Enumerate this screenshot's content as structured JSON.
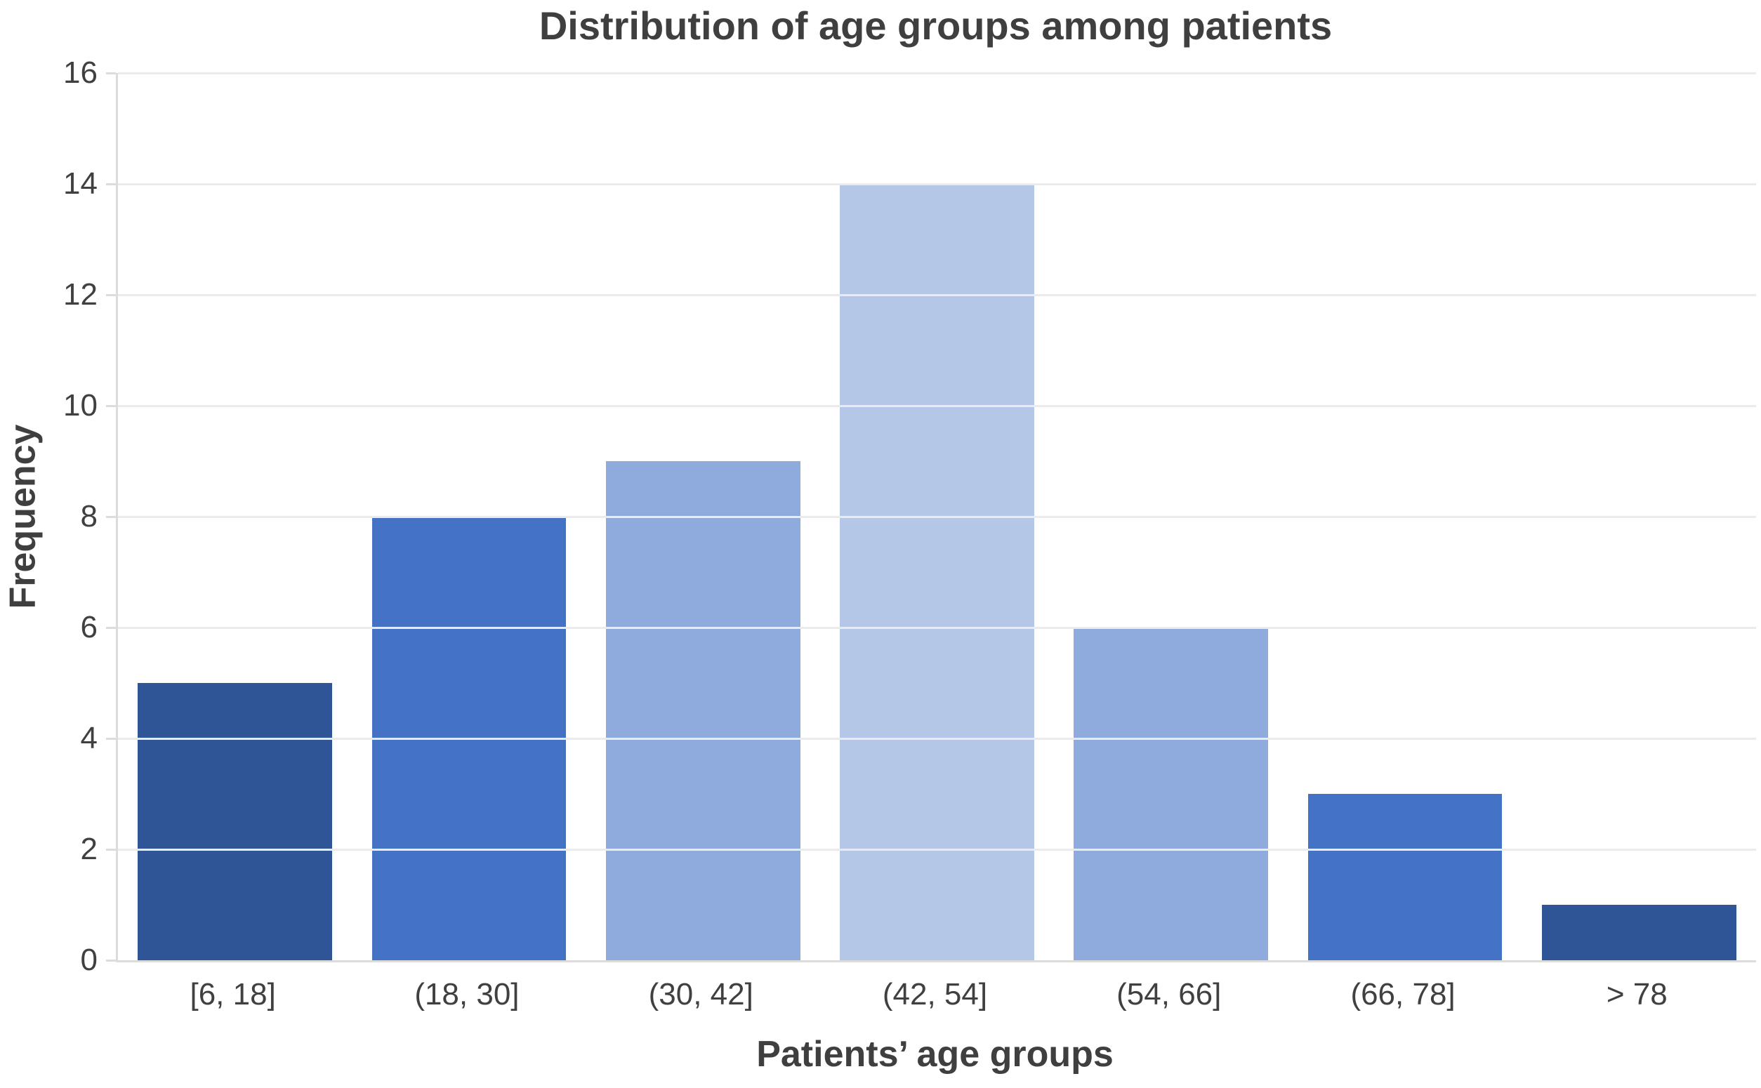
{
  "chart_data": {
    "type": "bar",
    "title": "Distribution of age groups among patients",
    "xlabel": "Patients’ age groups",
    "ylabel": "Frequency",
    "categories": [
      "[6, 18]",
      "(18, 30]",
      "(30, 42]",
      "(42, 54]",
      "(54, 66]",
      "(66, 78]",
      "> 78"
    ],
    "values": [
      5,
      8,
      9,
      14,
      6,
      3,
      1
    ],
    "bar_colors": [
      "#2F5597",
      "#4472C4",
      "#8FAADC",
      "#B4C7E7",
      "#8FAADC",
      "#4472C4",
      "#2F5597"
    ],
    "ylim": [
      0,
      16
    ],
    "yticks": [
      0,
      2,
      4,
      6,
      8,
      10,
      12,
      14,
      16
    ],
    "grid": "horizontal",
    "legend": "none",
    "colors": {
      "text": "#404040",
      "title_text": "#3f3f3f",
      "gridline": "#ebebeb",
      "axis_line": "#dcdcdc",
      "background": "#ffffff"
    }
  }
}
